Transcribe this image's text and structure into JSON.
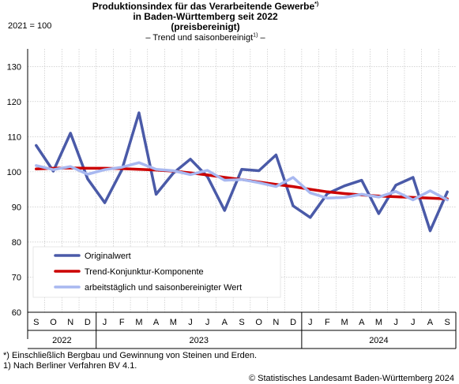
{
  "title": {
    "line1": "Produktionsindex für das Verarbeitende Gewerbe",
    "line1_sup": "*)",
    "line2": "in Baden-Württemberg seit 2022",
    "line3": "(preisbereinigt)",
    "subtitle_pre": "– Trend und saisonbereinigt",
    "subtitle_sup": "1)",
    "subtitle_post": " –"
  },
  "base_label": "2021 = 100",
  "footnotes": {
    "f1": "*) Einschließlich Bergbau und Gewinnung von Steinen und Erden.",
    "f2": "1) Nach Berliner Verfahren BV 4.1.",
    "source": "© Statistisches Landesamt Baden-Württemberg 2024"
  },
  "chart_data": {
    "type": "line",
    "x": [
      "S",
      "O",
      "N",
      "D",
      "J",
      "F",
      "M",
      "A",
      "M",
      "J",
      "J",
      "A",
      "S",
      "O",
      "N",
      "D",
      "J",
      "F",
      "M",
      "A",
      "M",
      "J",
      "J",
      "A",
      "S"
    ],
    "year_groups": [
      {
        "label": "2022",
        "start": 0,
        "end": 3
      },
      {
        "label": "2023",
        "start": 4,
        "end": 15
      },
      {
        "label": "2024",
        "start": 16,
        "end": 24
      }
    ],
    "ylim": [
      60,
      135
    ],
    "yticks": [
      60,
      70,
      80,
      90,
      100,
      110,
      120,
      130
    ],
    "grid": true,
    "legend_position": "bottom-left",
    "series": [
      {
        "name": "Originalwert",
        "color": "#4a5aa8",
        "width": 3.5,
        "values": [
          107.5,
          100.2,
          111.0,
          98.0,
          91.2,
          100.5,
          116.8,
          93.6,
          99.6,
          103.6,
          98.6,
          89.0,
          100.7,
          100.3,
          104.8,
          90.3,
          87.0,
          93.8,
          96.0,
          97.6,
          88.1,
          96.2,
          98.4,
          83.2,
          94.3
        ]
      },
      {
        "name": "Trend-Konjunktur-Komponente",
        "color": "#cc0000",
        "width": 3.5,
        "values": [
          100.8,
          101.0,
          101.1,
          101.0,
          101.0,
          100.9,
          100.7,
          100.5,
          100.2,
          99.7,
          99.1,
          98.4,
          97.8,
          97.1,
          96.4,
          95.8,
          95.0,
          94.3,
          93.8,
          93.4,
          93.1,
          92.9,
          92.7,
          92.5,
          92.3
        ]
      },
      {
        "name": "arbeitstäglich und saisonbereinigter Wert",
        "color": "#a8b8f0",
        "width": 3.5,
        "values": [
          101.8,
          100.6,
          101.5,
          99.3,
          100.6,
          101.3,
          102.6,
          100.7,
          100.3,
          99.2,
          100.4,
          97.6,
          97.8,
          96.9,
          95.8,
          98.4,
          94.0,
          92.5,
          92.7,
          93.6,
          92.8,
          94.4,
          92.0,
          94.6,
          92.0
        ]
      }
    ]
  }
}
